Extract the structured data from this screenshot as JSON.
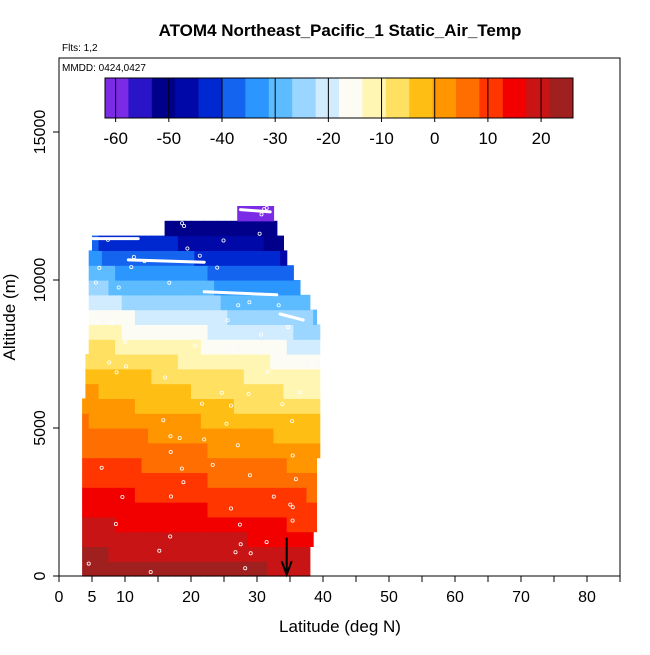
{
  "chart_data": {
    "type": "heatmap",
    "title": "ATOM4 Northeast_Pacific_1 Static_Air_Temp",
    "annotations": {
      "flights": "Flts: 1,2",
      "dates": "MMDD: 0424,0427"
    },
    "xlabel": "Latitude (deg N)",
    "ylabel": "Altitude (m)",
    "xlim": [
      0,
      85
    ],
    "ylim": [
      0,
      17500
    ],
    "xticks": [
      0,
      5,
      10,
      20,
      30,
      40,
      50,
      60,
      70,
      80
    ],
    "yticks": [
      0,
      5000,
      10000,
      15000
    ],
    "colorbar": {
      "ticks": [
        -60,
        -50,
        -40,
        -30,
        -20,
        -10,
        0,
        10,
        20
      ],
      "range": [
        -62,
        26
      ],
      "colors": [
        "#7b2ae6",
        "#2a14c8",
        "#00008b",
        "#0008a8",
        "#0028d0",
        "#1464f0",
        "#2c96ff",
        "#5cbcff",
        "#9ad6ff",
        "#d2ecff",
        "#fcfcf4",
        "#fff6b4",
        "#ffe060",
        "#ffbe14",
        "#ff9600",
        "#ff6e00",
        "#ff3600",
        "#f20000",
        "#c81414",
        "#a02020"
      ]
    },
    "layers": [
      {
        "alt": 250,
        "x0": 3.5,
        "x1": 38,
        "t_south": 24,
        "t_north": 21
      },
      {
        "alt": 750,
        "x0": 3.5,
        "x1": 38,
        "t_south": 22,
        "t_north": 18
      },
      {
        "alt": 1250,
        "x0": 3.5,
        "x1": 38.5,
        "t_south": 20,
        "t_north": 16
      },
      {
        "alt": 1750,
        "x0": 3.5,
        "x1": 39,
        "t_south": 18,
        "t_north": 12
      },
      {
        "alt": 2250,
        "x0": 3.5,
        "x1": 39,
        "t_south": 16,
        "t_north": 10
      },
      {
        "alt": 2750,
        "x0": 3.5,
        "x1": 39,
        "t_south": 14,
        "t_north": 8
      },
      {
        "alt": 3250,
        "x0": 3.5,
        "x1": 39,
        "t_south": 12,
        "t_north": 5
      },
      {
        "alt": 3750,
        "x0": 3.5,
        "x1": 39,
        "t_south": 10,
        "t_north": 3
      },
      {
        "alt": 4250,
        "x0": 3.5,
        "x1": 39.5,
        "t_south": 8,
        "t_north": 0
      },
      {
        "alt": 4750,
        "x0": 3.5,
        "x1": 39.5,
        "t_south": 6,
        "t_north": -2
      },
      {
        "alt": 5250,
        "x0": 3.5,
        "x1": 39.5,
        "t_south": 4,
        "t_north": -5
      },
      {
        "alt": 5750,
        "x0": 3.5,
        "x1": 39.5,
        "t_south": 2,
        "t_north": -9
      },
      {
        "alt": 6250,
        "x0": 4.0,
        "x1": 39.5,
        "t_south": 0,
        "t_north": -11
      },
      {
        "alt": 6750,
        "x0": 4.0,
        "x1": 39.5,
        "t_south": -2,
        "t_north": -13
      },
      {
        "alt": 7250,
        "x0": 4.0,
        "x1": 39.5,
        "t_south": -5,
        "t_north": -16
      },
      {
        "alt": 7750,
        "x0": 4.5,
        "x1": 39.5,
        "t_south": -8,
        "t_north": -20
      },
      {
        "alt": 8250,
        "x0": 4.5,
        "x1": 39.5,
        "t_south": -12,
        "t_north": -24
      },
      {
        "alt": 8750,
        "x0": 4.5,
        "x1": 39.0,
        "t_south": -16,
        "t_north": -27
      },
      {
        "alt": 9250,
        "x0": 4.5,
        "x1": 38.0,
        "t_south": -21,
        "t_north": -31
      },
      {
        "alt": 9750,
        "x0": 4.5,
        "x1": 36.5,
        "t_south": -26,
        "t_north": -35
      },
      {
        "alt": 10250,
        "x0": 4.5,
        "x1": 35.5,
        "t_south": -30,
        "t_north": -40
      },
      {
        "alt": 10750,
        "x0": 4.5,
        "x1": 34.5,
        "t_south": -35,
        "t_north": -45
      },
      {
        "alt": 11250,
        "x0": 5.0,
        "x1": 34.0,
        "t_south": -40,
        "t_north": -50
      },
      {
        "alt": 11750,
        "x0": 16.0,
        "x1": 33.0,
        "t_south": -50,
        "t_north": -53
      },
      {
        "alt": 12250,
        "x0": 27.0,
        "x1": 32.5,
        "t_south": -60,
        "t_north": -60
      }
    ],
    "flight_tracks": [
      {
        "lat": [
          5,
          12
        ],
        "alt": [
          11400,
          11400
        ]
      },
      {
        "lat": [
          10.5,
          22
        ],
        "alt": [
          10680,
          10600
        ]
      },
      {
        "lat": [
          22,
          33
        ],
        "alt": [
          9600,
          9500
        ]
      },
      {
        "lat": [
          27.5,
          32
        ],
        "alt": [
          12380,
          12300
        ]
      },
      {
        "lat": [
          33.5,
          37
        ],
        "alt": [
          8850,
          8650
        ]
      }
    ],
    "marker": {
      "lat": 34.5
    }
  }
}
